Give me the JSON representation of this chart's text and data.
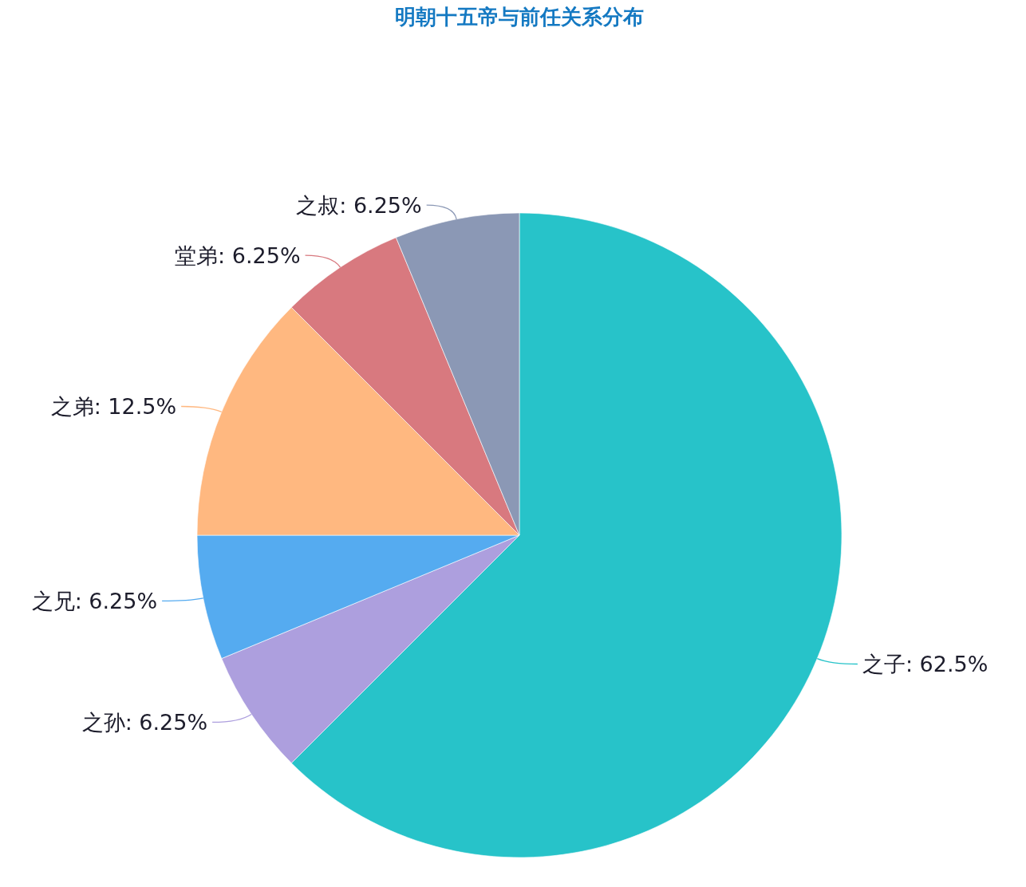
{
  "chart_data": {
    "type": "pie",
    "title": "明朝十五帝与前任关系分布",
    "categories": [
      "之子",
      "之孙",
      "之兄",
      "之弟",
      "堂弟",
      "之叔"
    ],
    "values": [
      62.5,
      6.25,
      6.25,
      12.5,
      6.25,
      6.25
    ],
    "colors": [
      "#27c3c9",
      "#ad9fde",
      "#55abf0",
      "#ffb880",
      "#d8797f",
      "#8b98b5"
    ],
    "value_labels": [
      "62.5%",
      "6.25%",
      "6.25%",
      "12.5%",
      "6.25%",
      "6.25%"
    ]
  }
}
